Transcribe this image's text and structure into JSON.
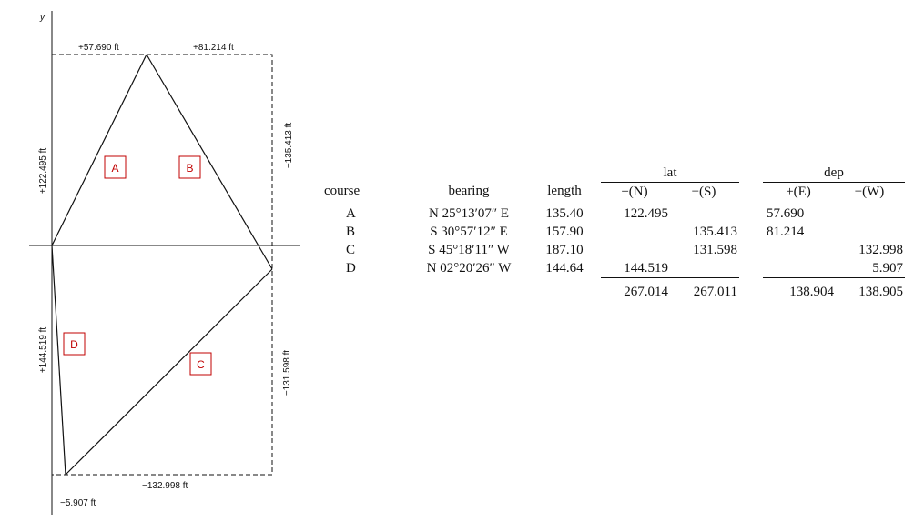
{
  "diagram": {
    "axis_label": "y",
    "dimensions": {
      "top_left": "+57.690 ft",
      "top_right": "+81.214 ft",
      "left_upper": "+122.495 ft",
      "right_upper": "−135.413 ft",
      "left_lower": "+144.519 ft",
      "right_lower": "−131.598 ft",
      "bottom": "−132.998 ft",
      "bottom_left": "−5.907 ft"
    },
    "courses": {
      "a": "A",
      "b": "B",
      "c": "C",
      "d": "D"
    },
    "colors": {
      "line": "#111111",
      "label": "#c00000"
    }
  },
  "table": {
    "group_headers": {
      "lat": "lat",
      "dep": "dep"
    },
    "columns": {
      "course": "course",
      "bearing": "bearing",
      "length": "length",
      "lat_n": "+(N)",
      "lat_s": "−(S)",
      "dep_e": "+(E)",
      "dep_w": "−(W)"
    },
    "rows": [
      {
        "course": "A",
        "bearing": "N 25°13′07″ E",
        "length": "135.40",
        "lat_n": "122.495",
        "lat_s": "",
        "dep_e": "57.690",
        "dep_w": ""
      },
      {
        "course": "B",
        "bearing": "S 30°57′12″ E",
        "length": "157.90",
        "lat_n": "",
        "lat_s": "135.413",
        "dep_e": "81.214",
        "dep_w": ""
      },
      {
        "course": "C",
        "bearing": "S 45°18′11″ W",
        "length": "187.10",
        "lat_n": "",
        "lat_s": "131.598",
        "dep_e": "",
        "dep_w": "132.998"
      },
      {
        "course": "D",
        "bearing": "N 02°20′26″ W",
        "length": "144.64",
        "lat_n": "144.519",
        "lat_s": "",
        "dep_e": "",
        "dep_w": "5.907"
      }
    ],
    "totals": {
      "lat_n": "267.014",
      "lat_s": "267.011",
      "dep_e": "138.904",
      "dep_w": "138.905"
    }
  }
}
